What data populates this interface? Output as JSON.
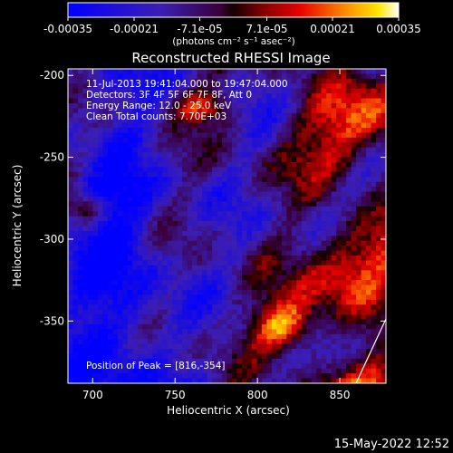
{
  "chart_data": {
    "type": "heatmap",
    "title": "Reconstructed RHESSI Image",
    "xlabel": "Heliocentric X (arcsec)",
    "ylabel": "Heliocentric Y (arcsec)",
    "x_range": [
      685,
      878
    ],
    "y_range": [
      -388,
      -196
    ],
    "x_ticks": [
      700,
      750,
      800,
      850
    ],
    "x_tick_labels": [
      "700",
      "750",
      "800",
      "850"
    ],
    "y_ticks": [
      -200,
      -250,
      -300,
      -350
    ],
    "y_tick_labels": [
      "-200",
      "-250",
      "-300",
      "-350"
    ],
    "colorbar": {
      "range": [
        -0.00035,
        0.00035
      ],
      "ticks": [
        -0.00035,
        -0.00021,
        -7.1e-05,
        7.1e-05,
        0.00021,
        0.00035
      ],
      "tick_labels": [
        "-0.00035",
        "-0.00021",
        "-7.1e-05",
        "7.1e-05",
        "0.00021",
        "0.00035"
      ],
      "units_label": "(photons cm⁻² s⁻¹ asec⁻²)"
    },
    "info_lines": [
      "11-Jul-2013 19:41:04.000 to 19:47:04.000",
      "Detectors: 3F 4F 5F 6F 7F 8F, Att 0",
      "Energy Range: 12.0 - 25.0 keV",
      "Clean     Total counts: 7.70E+03"
    ],
    "peak_label": "Position of Peak = [816,-354]",
    "peak_position": [
      816,
      -354
    ],
    "grid": false
  },
  "footer": {
    "timestamp": "15-May-2022 12:52"
  }
}
